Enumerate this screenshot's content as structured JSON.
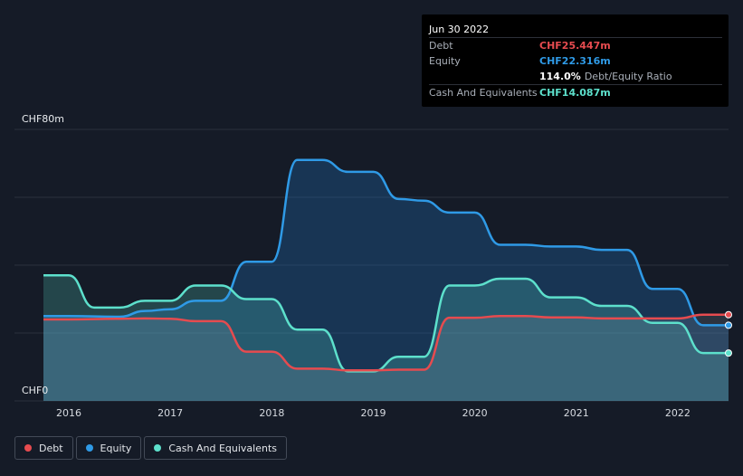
{
  "tooltip": {
    "date": "Jun 30 2022",
    "rows": [
      {
        "name": "Debt",
        "value": "CHF25.447m",
        "color": "#e64b4f"
      },
      {
        "name": "Equity",
        "value": "CHF22.316m",
        "color": "#2f9ae6"
      },
      {
        "name": "",
        "value": "114.0%",
        "extra": "Debt/Equity Ratio",
        "color": "#ffffff"
      },
      {
        "name": "Cash And Equivalents",
        "value": "CHF14.087m",
        "color": "#5de0cc"
      }
    ]
  },
  "legend": [
    {
      "label": "Debt",
      "color": "#e64b4f"
    },
    {
      "label": "Equity",
      "color": "#2f9ae6"
    },
    {
      "label": "Cash And Equivalents",
      "color": "#5de0cc"
    }
  ],
  "chart_data": {
    "type": "area",
    "y_top_label": "CHF80m",
    "y_bottom_label": "CHF0",
    "ylim": [
      0,
      80
    ],
    "xlim": [
      2015.75,
      2022.5
    ],
    "x_ticks": [
      {
        "value": 2016,
        "label": "2016"
      },
      {
        "value": 2017,
        "label": "2017"
      },
      {
        "value": 2018,
        "label": "2018"
      },
      {
        "value": 2019,
        "label": "2019"
      },
      {
        "value": 2020,
        "label": "2020"
      },
      {
        "value": 2021,
        "label": "2021"
      },
      {
        "value": 2022,
        "label": "2022"
      }
    ],
    "grid": true,
    "series": [
      {
        "name": "Equity",
        "color": "#2f9ae6",
        "points": [
          [
            2015.75,
            25
          ],
          [
            2016.0,
            25
          ],
          [
            2016.5,
            24.8
          ],
          [
            2016.75,
            26.5
          ],
          [
            2017.0,
            27
          ],
          [
            2017.25,
            29.5
          ],
          [
            2017.5,
            29.5
          ],
          [
            2017.75,
            41
          ],
          [
            2018.0,
            41
          ],
          [
            2018.25,
            71
          ],
          [
            2018.5,
            71
          ],
          [
            2018.75,
            67.5
          ],
          [
            2019.0,
            67.5
          ],
          [
            2019.25,
            59.5
          ],
          [
            2019.5,
            59
          ],
          [
            2019.75,
            55.5
          ],
          [
            2020.0,
            55.5
          ],
          [
            2020.25,
            46
          ],
          [
            2020.5,
            46
          ],
          [
            2020.75,
            45.5
          ],
          [
            2021.0,
            45.5
          ],
          [
            2021.25,
            44.5
          ],
          [
            2021.5,
            44.5
          ],
          [
            2021.75,
            33
          ],
          [
            2022.0,
            33
          ],
          [
            2022.25,
            22.3
          ],
          [
            2022.5,
            22.3
          ]
        ]
      },
      {
        "name": "Cash And Equivalents",
        "color": "#5de0cc",
        "points": [
          [
            2015.75,
            37
          ],
          [
            2016.0,
            37
          ],
          [
            2016.25,
            27.5
          ],
          [
            2016.5,
            27.5
          ],
          [
            2016.75,
            29.5
          ],
          [
            2017.0,
            29.5
          ],
          [
            2017.25,
            34
          ],
          [
            2017.5,
            34
          ],
          [
            2017.75,
            30
          ],
          [
            2018.0,
            30
          ],
          [
            2018.25,
            21
          ],
          [
            2018.5,
            21
          ],
          [
            2018.75,
            8.7
          ],
          [
            2019.0,
            8.7
          ],
          [
            2019.25,
            13
          ],
          [
            2019.5,
            13
          ],
          [
            2019.75,
            34
          ],
          [
            2020.0,
            34
          ],
          [
            2020.25,
            36
          ],
          [
            2020.5,
            36
          ],
          [
            2020.75,
            30.5
          ],
          [
            2021.0,
            30.5
          ],
          [
            2021.25,
            28
          ],
          [
            2021.5,
            28
          ],
          [
            2021.75,
            23
          ],
          [
            2022.0,
            23
          ],
          [
            2022.25,
            14.1
          ],
          [
            2022.5,
            14.1
          ]
        ]
      },
      {
        "name": "Debt",
        "color": "#e64b4f",
        "points": [
          [
            2015.75,
            24
          ],
          [
            2016.0,
            24
          ],
          [
            2016.5,
            24.2
          ],
          [
            2016.75,
            24.3
          ],
          [
            2017.0,
            24.2
          ],
          [
            2017.25,
            23.5
          ],
          [
            2017.5,
            23.5
          ],
          [
            2017.75,
            14.5
          ],
          [
            2018.0,
            14.5
          ],
          [
            2018.25,
            9.5
          ],
          [
            2018.5,
            9.5
          ],
          [
            2018.75,
            9
          ],
          [
            2019.0,
            9
          ],
          [
            2019.25,
            9.2
          ],
          [
            2019.5,
            9.2
          ],
          [
            2019.75,
            24.5
          ],
          [
            2020.0,
            24.5
          ],
          [
            2020.25,
            25
          ],
          [
            2020.5,
            25
          ],
          [
            2020.75,
            24.6
          ],
          [
            2021.0,
            24.6
          ],
          [
            2021.25,
            24.3
          ],
          [
            2021.5,
            24.3
          ],
          [
            2021.75,
            24.3
          ],
          [
            2022.0,
            24.3
          ],
          [
            2022.25,
            25.4
          ],
          [
            2022.5,
            25.4
          ]
        ]
      }
    ]
  }
}
